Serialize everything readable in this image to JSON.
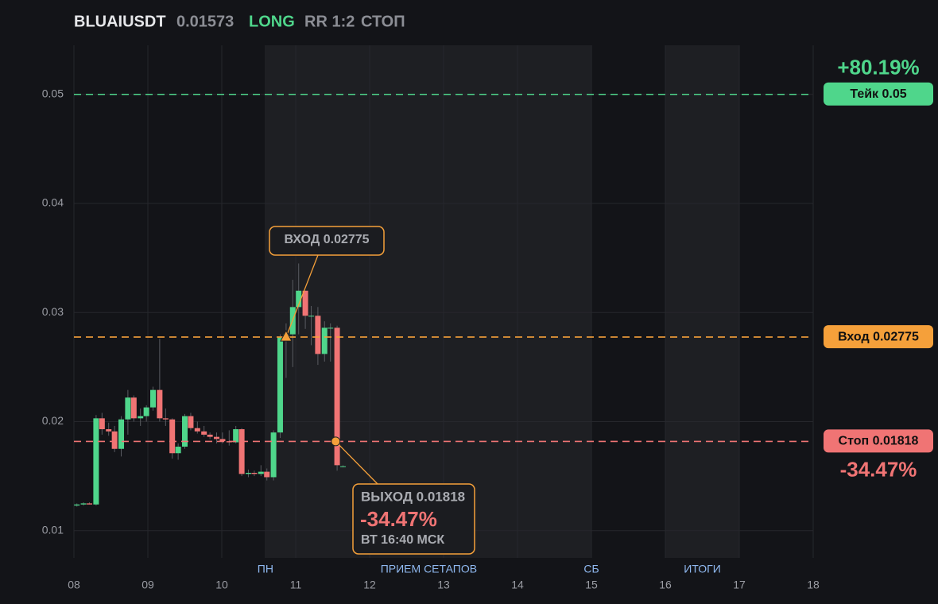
{
  "header": {
    "symbol": "BLUAIUSDT",
    "price": "0.01573",
    "side": "LONG",
    "rr": "RR 1:2",
    "status": "СТОП"
  },
  "chart_data": {
    "type": "candlestick",
    "xlim": [
      8,
      18
    ],
    "xticks": [
      {
        "value": 8,
        "label": "08"
      },
      {
        "value": 9,
        "label": "09"
      },
      10,
      11,
      12,
      13,
      14,
      15,
      16,
      17,
      18
    ],
    "ylim": [
      0.0075,
      0.0545
    ],
    "yticks": [
      0.01,
      0.02,
      0.03,
      0.04,
      0.05
    ],
    "grid": true,
    "up_color": "#4fd68b",
    "down_color": "#f07474",
    "sessions": [
      {
        "label": "ПН",
        "x": 10.59
      },
      {
        "label": "ПРИЕМ СЕТАПОВ",
        "x": 12.8
      },
      {
        "label": "СБ",
        "x": 15.0
      },
      {
        "label": "ИТОГИ",
        "x": 16.5
      }
    ],
    "shaded": [
      [
        10.58,
        15.0
      ],
      [
        16.0,
        17.0
      ]
    ],
    "x": [
      8.04,
      8.13,
      8.21,
      8.3,
      8.38,
      8.47,
      8.55,
      8.64,
      8.73,
      8.81,
      8.9,
      8.98,
      9.07,
      9.16,
      9.24,
      9.33,
      9.41,
      9.5,
      9.58,
      9.67,
      9.76,
      9.84,
      9.93,
      10.01,
      10.1,
      10.19,
      10.27,
      10.36,
      10.44,
      10.53,
      10.61,
      10.7,
      10.79,
      10.87,
      10.96,
      11.04,
      11.13,
      11.21,
      11.3,
      11.39,
      11.47,
      11.56,
      11.64
    ],
    "open": [
      0.0123,
      0.0124,
      0.0125,
      0.0124,
      0.0203,
      0.0193,
      0.0191,
      0.0175,
      0.0202,
      0.0222,
      0.0203,
      0.0205,
      0.0213,
      0.0229,
      0.0203,
      0.0202,
      0.0171,
      0.0177,
      0.0205,
      0.0194,
      0.0191,
      0.0188,
      0.0186,
      0.0184,
      0.0182,
      0.0181,
      0.0193,
      0.0152,
      0.0153,
      0.0152,
      0.0154,
      0.0149,
      0.019,
      0.0277,
      0.028,
      0.0305,
      0.032,
      0.0297,
      0.0297,
      0.0262,
      0.0286,
      0.0286,
      0.0159
    ],
    "high": [
      0.0125,
      0.0126,
      0.0126,
      0.0206,
      0.0208,
      0.0199,
      0.0196,
      0.0205,
      0.0229,
      0.0224,
      0.0212,
      0.0215,
      0.0232,
      0.0276,
      0.0212,
      0.0203,
      0.018,
      0.0207,
      0.0208,
      0.02,
      0.0196,
      0.019,
      0.019,
      0.019,
      0.0192,
      0.0196,
      0.0194,
      0.0156,
      0.0155,
      0.016,
      0.0157,
      0.0192,
      0.028,
      0.029,
      0.033,
      0.0345,
      0.032,
      0.0306,
      0.0305,
      0.0292,
      0.029,
      0.0288,
      0.016
    ],
    "low": [
      0.0122,
      0.0123,
      0.0124,
      0.0123,
      0.0188,
      0.0187,
      0.0172,
      0.0168,
      0.0188,
      0.02,
      0.0196,
      0.02,
      0.021,
      0.02,
      0.0196,
      0.0166,
      0.0165,
      0.0175,
      0.0192,
      0.0189,
      0.0186,
      0.0184,
      0.018,
      0.018,
      0.0178,
      0.018,
      0.015,
      0.0149,
      0.015,
      0.015,
      0.0146,
      0.0146,
      0.0185,
      0.024,
      0.025,
      0.028,
      0.0285,
      0.027,
      0.0252,
      0.0255,
      0.0255,
      0.0155,
      0.0158
    ],
    "close": [
      0.0124,
      0.0125,
      0.0124,
      0.0203,
      0.0193,
      0.0191,
      0.0175,
      0.0202,
      0.0222,
      0.0203,
      0.0205,
      0.0213,
      0.0229,
      0.0203,
      0.0202,
      0.0171,
      0.0177,
      0.0205,
      0.0194,
      0.0191,
      0.0188,
      0.0186,
      0.0184,
      0.0182,
      0.0181,
      0.0193,
      0.0152,
      0.0153,
      0.0152,
      0.0154,
      0.0149,
      0.019,
      0.0277,
      0.028,
      0.0305,
      0.032,
      0.0297,
      0.0297,
      0.0262,
      0.0286,
      0.0286,
      0.016,
      0.0159
    ],
    "levels": [
      {
        "label": "Тейк 0.05",
        "value": 0.05,
        "color": "#4fd68b",
        "pct": "+80.19%"
      },
      {
        "label": "Вход 0.02775",
        "value": 0.02775,
        "color": "#f5a03a"
      },
      {
        "label": "Стоп 0.01818",
        "value": 0.01818,
        "color": "#f07474",
        "pct": "-34.47%"
      }
    ],
    "entry": {
      "label": "ВХОД 0.02775",
      "x": 10.87,
      "y": 0.02775
    },
    "exit": {
      "label": "ВЫХОД 0.01818",
      "pct": "-34.47%",
      "time": "ВТ 16:40 МСК",
      "x": 11.54,
      "y": 0.01818
    }
  }
}
